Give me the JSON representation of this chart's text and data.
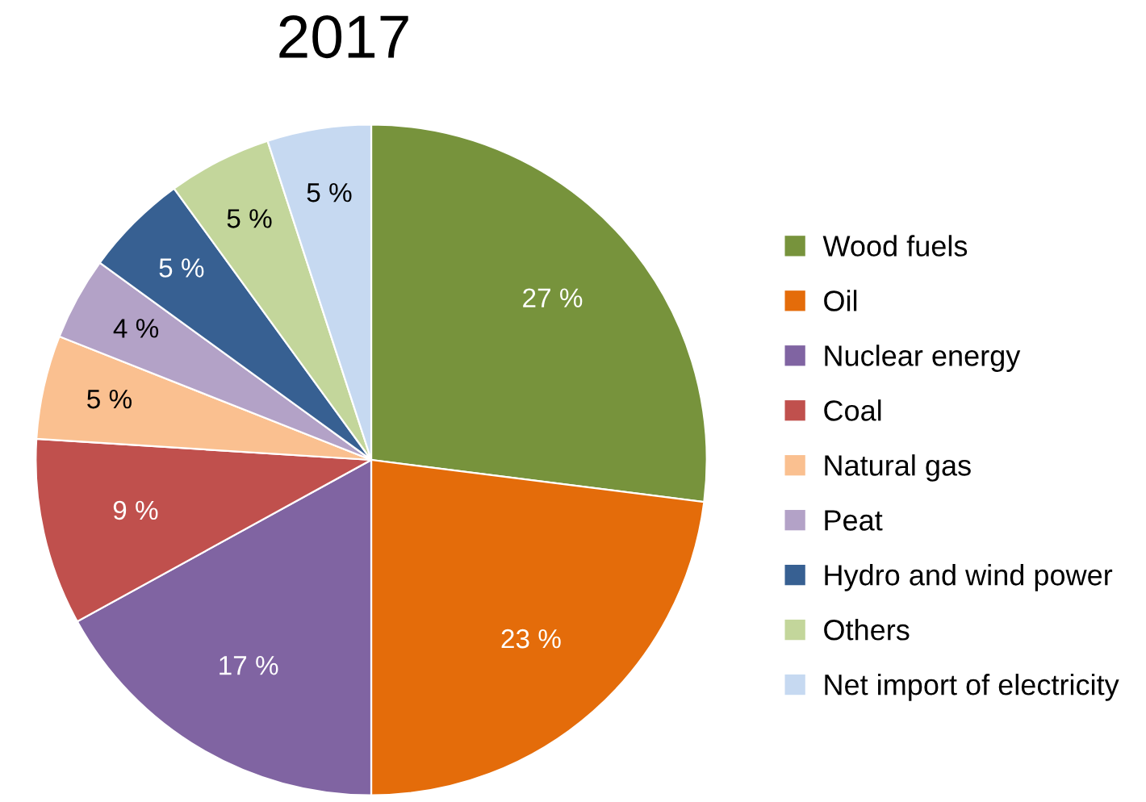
{
  "chart_data": {
    "type": "pie",
    "title": "2017",
    "categories": [
      "Wood fuels",
      "Oil",
      "Nuclear energy",
      "Coal",
      "Natural gas",
      "Peat",
      "Hydro and wind power",
      "Others",
      "Net import of electricity"
    ],
    "values": [
      27,
      23,
      17,
      9,
      5,
      4,
      5,
      5,
      5
    ],
    "value_labels": [
      "27 %",
      "23 %",
      "17 %",
      "9 %",
      "5 %",
      "4 %",
      "5 %",
      "5 %",
      "5 %"
    ],
    "colors": [
      "#77933c",
      "#e46c0a",
      "#8064a2",
      "#c0504d",
      "#fac090",
      "#b3a2c7",
      "#376092",
      "#c3d69b",
      "#c6d9f1"
    ],
    "legend": "right"
  }
}
